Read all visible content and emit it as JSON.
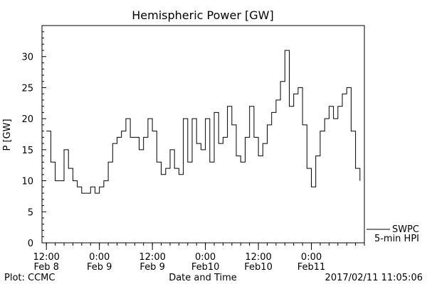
{
  "chart_data": {
    "type": "line",
    "title": "Hemispheric Power [GW]",
    "xlabel": "Date and Time",
    "ylabel": "P [GW]",
    "ylim": [
      0,
      35
    ],
    "xlim_hours_axis_units": "hours",
    "x_ticks": [
      {
        "time": "12:00",
        "date": "Feb 8"
      },
      {
        "time": "0:00",
        "date": "Feb 9"
      },
      {
        "time": "12:00",
        "date": "Feb 9"
      },
      {
        "time": "0:00",
        "date": "Feb10"
      },
      {
        "time": "12:00",
        "date": "Feb10"
      },
      {
        "time": "0:00",
        "date": "Feb11"
      }
    ],
    "y_ticks": [
      0,
      5,
      10,
      15,
      20,
      25,
      30
    ],
    "grid": false,
    "legend": {
      "position": "bottom-right",
      "entries": [
        "SWPC",
        "5-min HPI"
      ]
    },
    "series": [
      {
        "name": "5-min HPI",
        "x": [
          "2017-02-08T12:00",
          "2017-02-08T13:00",
          "2017-02-08T14:00",
          "2017-02-08T15:00",
          "2017-02-08T16:00",
          "2017-02-08T17:00",
          "2017-02-08T18:00",
          "2017-02-08T19:00",
          "2017-02-08T20:00",
          "2017-02-08T21:00",
          "2017-02-08T22:00",
          "2017-02-08T23:00",
          "2017-02-09T00:00",
          "2017-02-09T01:00",
          "2017-02-09T02:00",
          "2017-02-09T03:00",
          "2017-02-09T04:00",
          "2017-02-09T05:00",
          "2017-02-09T06:00",
          "2017-02-09T07:00",
          "2017-02-09T08:00",
          "2017-02-09T09:00",
          "2017-02-09T10:00",
          "2017-02-09T11:00",
          "2017-02-09T12:00",
          "2017-02-09T13:00",
          "2017-02-09T14:00",
          "2017-02-09T15:00",
          "2017-02-09T16:00",
          "2017-02-09T17:00",
          "2017-02-09T18:00",
          "2017-02-09T19:00",
          "2017-02-09T20:00",
          "2017-02-09T21:00",
          "2017-02-09T22:00",
          "2017-02-09T23:00",
          "2017-02-10T00:00",
          "2017-02-10T01:00",
          "2017-02-10T02:00",
          "2017-02-10T03:00",
          "2017-02-10T04:00",
          "2017-02-10T05:00",
          "2017-02-10T06:00",
          "2017-02-10T07:00",
          "2017-02-10T08:00",
          "2017-02-10T09:00",
          "2017-02-10T10:00",
          "2017-02-10T11:00",
          "2017-02-10T12:00",
          "2017-02-10T13:00",
          "2017-02-10T14:00",
          "2017-02-10T15:00",
          "2017-02-10T16:00",
          "2017-02-10T17:00",
          "2017-02-10T18:00",
          "2017-02-10T19:00",
          "2017-02-10T20:00",
          "2017-02-10T21:00",
          "2017-02-10T22:00",
          "2017-02-10T23:00",
          "2017-02-11T00:00",
          "2017-02-11T01:00",
          "2017-02-11T02:00",
          "2017-02-11T03:00",
          "2017-02-11T04:00",
          "2017-02-11T05:00",
          "2017-02-11T06:00",
          "2017-02-11T07:00",
          "2017-02-11T08:00",
          "2017-02-11T09:00",
          "2017-02-11T10:00",
          "2017-02-11T11:00"
        ],
        "values": [
          18,
          13,
          10,
          10,
          15,
          12,
          10,
          9,
          8,
          8,
          9,
          8,
          9,
          10,
          13,
          16,
          17,
          18,
          20,
          17,
          17,
          15,
          17,
          20,
          18,
          13,
          11,
          12,
          15,
          12,
          11,
          20,
          13,
          20,
          16,
          15,
          20,
          13,
          21,
          16,
          17,
          22,
          19,
          14,
          13,
          17,
          22,
          17,
          14,
          16,
          19,
          21,
          23,
          26,
          31,
          22,
          24,
          25,
          19,
          12,
          9,
          14,
          18,
          20,
          22,
          20,
          22,
          24,
          25,
          18,
          12,
          10
        ]
      }
    ]
  },
  "footer": {
    "left": "Plot: CCMC",
    "right": "2017/02/11 11:05:06"
  }
}
